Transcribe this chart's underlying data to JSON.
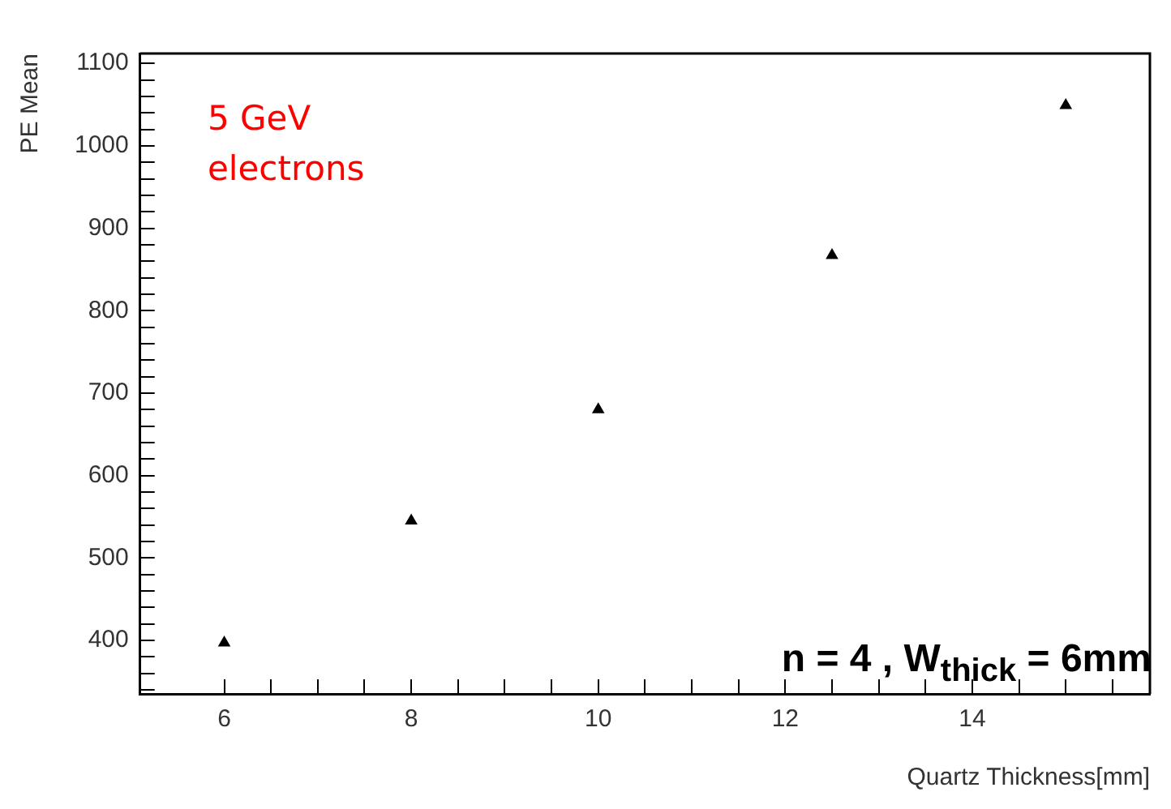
{
  "chart_data": {
    "type": "scatter",
    "xlabel": "Quartz Thickness[mm]",
    "ylabel": "PE Mean",
    "x": [
      6,
      8,
      10,
      12.5,
      15
    ],
    "series": [
      {
        "color": "#000000",
        "values": [
          397,
          545,
          680,
          867,
          1049
        ]
      }
    ],
    "xlim": [
      5.1,
      15.9
    ],
    "xticks": [
      6,
      {
        "value": 6.5,
        "label": null
      },
      {
        "value": 7,
        "label": null
      },
      {
        "value": 7.5,
        "label": null
      },
      8,
      {
        "value": 8.5,
        "label": null
      },
      {
        "value": 9,
        "label": null
      },
      {
        "value": 9.5,
        "label": null
      },
      10,
      {
        "value": 10.5,
        "label": null
      },
      {
        "value": 11,
        "label": null
      },
      {
        "value": 11.5,
        "label": null
      },
      12,
      {
        "value": 12.5,
        "label": null
      },
      {
        "value": 13,
        "label": null
      },
      {
        "value": 13.5,
        "label": null
      },
      14,
      {
        "value": 14.5,
        "label": null
      },
      {
        "value": 15,
        "label": null
      },
      {
        "value": 15.5,
        "label": null
      }
    ],
    "ylim": [
      335,
      1112
    ],
    "yticks": [
      {
        "value": 340,
        "label": null
      },
      {
        "value": 360,
        "label": null
      },
      {
        "value": 380,
        "label": null
      },
      400,
      {
        "value": 420,
        "label": null
      },
      {
        "value": 440,
        "label": null
      },
      {
        "value": 460,
        "label": null
      },
      {
        "value": 480,
        "label": null
      },
      500,
      {
        "value": 520,
        "label": null
      },
      {
        "value": 540,
        "label": null
      },
      {
        "value": 560,
        "label": null
      },
      {
        "value": 580,
        "label": null
      },
      600,
      {
        "value": 620,
        "label": null
      },
      {
        "value": 640,
        "label": null
      },
      {
        "value": 660,
        "label": null
      },
      {
        "value": 680,
        "label": null
      },
      700,
      {
        "value": 720,
        "label": null
      },
      {
        "value": 740,
        "label": null
      },
      {
        "value": 760,
        "label": null
      },
      {
        "value": 780,
        "label": null
      },
      800,
      {
        "value": 820,
        "label": null
      },
      {
        "value": 840,
        "label": null
      },
      {
        "value": 860,
        "label": null
      },
      {
        "value": 880,
        "label": null
      },
      900,
      {
        "value": 920,
        "label": null
      },
      {
        "value": 940,
        "label": null
      },
      {
        "value": 960,
        "label": null
      },
      {
        "value": 980,
        "label": null
      },
      1000,
      {
        "value": 1020,
        "label": null
      },
      {
        "value": 1040,
        "label": null
      },
      {
        "value": 1060,
        "label": null
      },
      {
        "value": 1080,
        "label": null
      },
      1100
    ],
    "grid": false,
    "legend": false,
    "marker": "triangle",
    "annotations": [
      "5 GeV electrons",
      "n = 4 , W$_{thick}$ = 6mm"
    ]
  }
}
